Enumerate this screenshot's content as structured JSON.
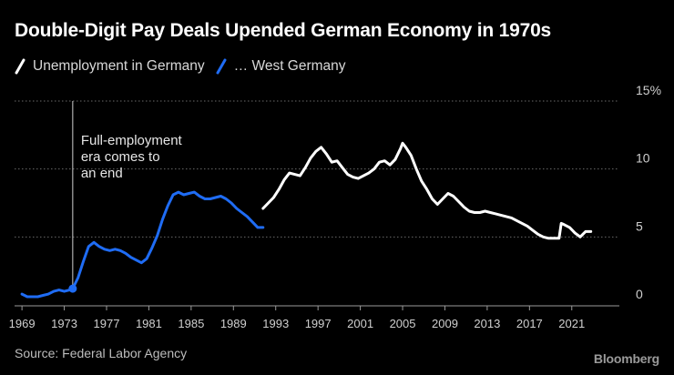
{
  "page": {
    "background": "#000000",
    "brand": "Bloomberg"
  },
  "chart_data": {
    "type": "line",
    "title": "Double-Digit Pay Deals Upended German Economy in 1970s",
    "source": "Source: Federal Labor Agency",
    "xlabel": "",
    "ylabel": "",
    "xlim": [
      1968.3,
      2025.5
    ],
    "ylim": [
      0,
      15
    ],
    "x_ticks": [
      "1969",
      "1973",
      "1977",
      "1981",
      "1985",
      "1989",
      "1993",
      "1997",
      "2001",
      "2005",
      "2009",
      "2013",
      "2017",
      "2021"
    ],
    "y_ticks": [
      "0",
      "5",
      "10",
      "15%"
    ],
    "grid": true,
    "legend_position": "top-left",
    "annotation": {
      "lines": [
        "Full-employment",
        "era comes to",
        "an end"
      ],
      "x": 1973.8
    },
    "marker": {
      "x": 1973.8,
      "y": 1.2,
      "color": "#1f6cf4"
    },
    "series": [
      {
        "name": "Unemployment in Germany",
        "color": "#ffffff",
        "x": [
          1991.8,
          1992.3,
          1992.8,
          1993.3,
          1993.8,
          1994.3,
          1994.8,
          1995.3,
          1995.8,
          1996.3,
          1996.8,
          1997.3,
          1997.8,
          1998.3,
          1998.8,
          1999.3,
          1999.8,
          2000.3,
          2000.8,
          2001.3,
          2001.8,
          2002.3,
          2002.8,
          2003.3,
          2003.8,
          2004.3,
          2004.8,
          2005.0,
          2005.3,
          2005.8,
          2006.3,
          2006.8,
          2007.3,
          2007.8,
          2008.3,
          2008.8,
          2009.3,
          2009.8,
          2010.3,
          2010.8,
          2011.3,
          2011.8,
          2012.3,
          2012.8,
          2013.3,
          2013.8,
          2014.3,
          2014.8,
          2015.3,
          2015.8,
          2016.3,
          2016.8,
          2017.3,
          2017.8,
          2018.3,
          2018.8,
          2019.3,
          2019.8,
          2020.0,
          2020.3,
          2020.8,
          2021.3,
          2021.8,
          2022.3,
          2022.8
        ],
        "values": [
          7.1,
          7.5,
          7.9,
          8.5,
          9.2,
          9.7,
          9.6,
          9.5,
          10.1,
          10.8,
          11.3,
          11.6,
          11.1,
          10.5,
          10.6,
          10.1,
          9.6,
          9.4,
          9.3,
          9.5,
          9.7,
          10.0,
          10.5,
          10.6,
          10.3,
          10.7,
          11.5,
          11.9,
          11.6,
          11.0,
          10.0,
          9.1,
          8.5,
          7.8,
          7.4,
          7.8,
          8.2,
          8.0,
          7.6,
          7.2,
          6.9,
          6.8,
          6.8,
          6.9,
          6.8,
          6.7,
          6.6,
          6.5,
          6.4,
          6.2,
          6.0,
          5.8,
          5.5,
          5.2,
          5.0,
          4.9,
          4.9,
          4.9,
          6.0,
          5.9,
          5.7,
          5.3,
          5.0,
          5.4,
          5.4
        ]
      },
      {
        "name": "… West Germany",
        "color": "#1f6cf4",
        "x": [
          1969.0,
          1969.5,
          1970.0,
          1970.5,
          1971.0,
          1971.5,
          1972.0,
          1972.5,
          1973.0,
          1973.5,
          1973.8,
          1974.3,
          1974.8,
          1975.3,
          1975.8,
          1976.3,
          1976.8,
          1977.3,
          1977.8,
          1978.3,
          1978.8,
          1979.3,
          1979.8,
          1980.3,
          1980.8,
          1981.3,
          1981.8,
          1982.3,
          1982.8,
          1983.3,
          1983.8,
          1984.3,
          1984.8,
          1985.3,
          1985.8,
          1986.3,
          1986.8,
          1987.3,
          1987.8,
          1988.3,
          1988.8,
          1989.3,
          1989.8,
          1990.3,
          1990.8,
          1991.3,
          1991.8
        ],
        "values": [
          0.8,
          0.6,
          0.6,
          0.6,
          0.7,
          0.8,
          1.0,
          1.1,
          1.0,
          1.1,
          1.2,
          2.0,
          3.2,
          4.3,
          4.6,
          4.3,
          4.1,
          4.0,
          4.1,
          4.0,
          3.8,
          3.5,
          3.3,
          3.1,
          3.4,
          4.2,
          5.1,
          6.3,
          7.3,
          8.1,
          8.3,
          8.1,
          8.2,
          8.3,
          8.0,
          7.8,
          7.8,
          7.9,
          8.0,
          7.8,
          7.5,
          7.1,
          6.8,
          6.5,
          6.1,
          5.7,
          5.7
        ]
      }
    ]
  }
}
